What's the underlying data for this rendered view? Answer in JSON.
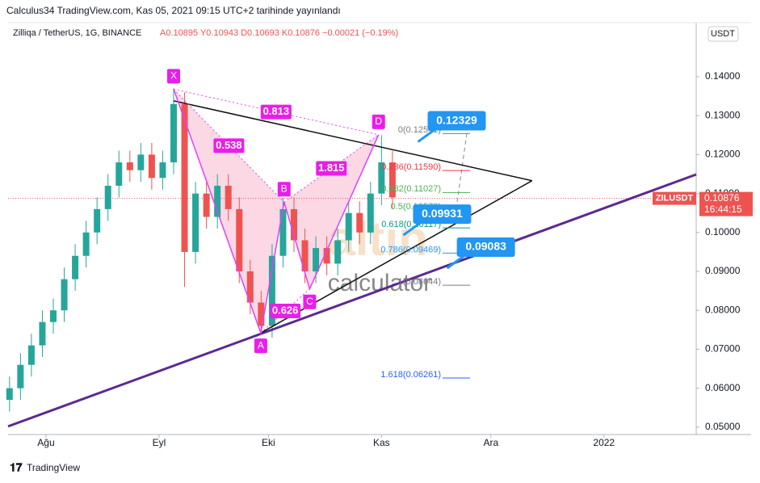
{
  "header": {
    "published": "Calculus34 TradingView.com, Kas 05, 2021 09:15 UTC+2 tarihinde yayınlandı",
    "footer": "TradingView",
    "currency_button": "USDT",
    "watermark": [
      "altın",
      "calculator"
    ]
  },
  "chart_data": {
    "type": "candlestick",
    "title": "Zilliqa / TetherUS, 1G, BINANCE",
    "ohlc_text": "A0.10895 Y0.10943 D0.10693 K0.10876 −0.00021 (−0.19%)",
    "up_color": "#26a69a",
    "down_color": "#ef5350",
    "x": [
      -10,
      -7,
      -4,
      -1,
      2,
      5,
      8,
      11,
      14,
      17,
      20,
      23,
      26,
      29,
      32,
      35,
      38,
      41,
      44,
      47,
      50,
      53,
      56,
      59,
      62,
      65,
      68,
      71,
      74,
      77,
      80,
      83,
      86,
      89,
      92,
      95
    ],
    "open": [
      0.057,
      0.06,
      0.066,
      0.071,
      0.077,
      0.08,
      0.088,
      0.094,
      0.1,
      0.106,
      0.112,
      0.118,
      0.116,
      0.12,
      0.114,
      0.118,
      0.133,
      0.095,
      0.11,
      0.104,
      0.112,
      0.106,
      0.09,
      0.082,
      0.076,
      0.094,
      0.106,
      0.098,
      0.09,
      0.096,
      0.092,
      0.098,
      0.105,
      0.1,
      0.11,
      0.118
    ],
    "high": [
      0.063,
      0.069,
      0.074,
      0.08,
      0.083,
      0.091,
      0.097,
      0.103,
      0.109,
      0.115,
      0.121,
      0.121,
      0.123,
      0.123,
      0.121,
      0.137,
      0.136,
      0.113,
      0.113,
      0.115,
      0.115,
      0.109,
      0.093,
      0.085,
      0.097,
      0.109,
      0.109,
      0.101,
      0.099,
      0.099,
      0.101,
      0.108,
      0.108,
      0.113,
      0.125,
      0.121
    ],
    "low": [
      0.054,
      0.057,
      0.063,
      0.068,
      0.074,
      0.077,
      0.085,
      0.091,
      0.097,
      0.103,
      0.109,
      0.113,
      0.113,
      0.111,
      0.111,
      0.115,
      0.086,
      0.092,
      0.101,
      0.101,
      0.103,
      0.087,
      0.079,
      0.074,
      0.073,
      0.091,
      0.095,
      0.087,
      0.087,
      0.089,
      0.089,
      0.095,
      0.097,
      0.097,
      0.107,
      0.106
    ],
    "close": [
      0.06,
      0.066,
      0.071,
      0.077,
      0.08,
      0.088,
      0.094,
      0.1,
      0.106,
      0.112,
      0.118,
      0.116,
      0.12,
      0.114,
      0.118,
      0.133,
      0.095,
      0.11,
      0.104,
      0.112,
      0.106,
      0.09,
      0.082,
      0.076,
      0.094,
      0.106,
      0.098,
      0.09,
      0.096,
      0.092,
      0.098,
      0.105,
      0.1,
      0.11,
      0.118,
      0.109
    ],
    "xlim": [
      -10.4,
      178.3
    ],
    "ylim": [
      0.0481,
      0.1539
    ],
    "xticks": [
      {
        "value": 0,
        "label": "Ağu"
      },
      {
        "value": 31,
        "label": "Eyl"
      },
      {
        "value": 61,
        "label": "Eki"
      },
      {
        "value": 92,
        "label": "Kas"
      },
      {
        "value": 122,
        "label": "Ara"
      },
      {
        "value": 153,
        "label": "2022"
      }
    ],
    "yticks": [
      {
        "value": 0.05,
        "label": "0.05000"
      },
      {
        "value": 0.06,
        "label": "0.06000"
      },
      {
        "value": 0.07,
        "label": "0.07000"
      },
      {
        "value": 0.08,
        "label": "0.08000"
      },
      {
        "value": 0.09,
        "label": "0.09000"
      },
      {
        "value": 0.1,
        "label": "0.10000"
      },
      {
        "value": 0.11,
        "label": "0.11000"
      },
      {
        "value": 0.12,
        "label": "0.12000"
      },
      {
        "value": 0.13,
        "label": "0.13000"
      },
      {
        "value": 0.14,
        "label": "0.14000"
      }
    ],
    "last_price": {
      "symbol": "ZILUSDT",
      "value": 0.10876,
      "label": "0.10876",
      "countdown": "16:44:15",
      "color": "#ef5350"
    },
    "pattern": {
      "color": "#e040fb",
      "points": [
        {
          "name": "X",
          "x": 35,
          "y": 0.1368
        },
        {
          "name": "A",
          "x": 58.9,
          "y": 0.0742
        },
        {
          "name": "B",
          "x": 65.3,
          "y": 0.1078
        },
        {
          "name": "C",
          "x": 72.3,
          "y": 0.0855
        },
        {
          "name": "D",
          "x": 91.2,
          "y": 0.1251
        }
      ],
      "ratios": [
        "0.538",
        "0.813",
        "1.815",
        "0.626"
      ]
    },
    "trend_lines": [
      {
        "color": "#5b2a8f",
        "points": [
          [
            -10.4,
            0.0502
          ],
          [
            178.3,
            0.1149
          ]
        ]
      },
      {
        "color": "#111111",
        "points": [
          [
            35,
            0.1338
          ],
          [
            133.3,
            0.1133
          ]
        ]
      },
      {
        "color": "#111111",
        "points": [
          [
            58.9,
            0.0742
          ],
          [
            133.3,
            0.1133
          ]
        ]
      }
    ],
    "fib_levels": [
      {
        "label": "0(0.12541)",
        "value": 0.12541,
        "color": "#787b86"
      },
      {
        "label": "0.236(0.11590)",
        "value": 0.1159,
        "color": "#f23645"
      },
      {
        "label": "0.382(0.11027)",
        "value": 0.11027,
        "color": "#4caf50"
      },
      {
        "label": "0.5(0.10573)",
        "value": 0.10573,
        "color": "#4caf50"
      },
      {
        "label": "0.618(0.10117)",
        "value": 0.10117,
        "color": "#089981"
      },
      {
        "label": "0.786(0.09469)",
        "value": 0.09469,
        "color": "#2196f3"
      },
      {
        "label": "1(0.08644)",
        "value": 0.08644,
        "color": "#787b86"
      },
      {
        "label": "1.618(0.06261)",
        "value": 0.06261,
        "color": "#2962ff"
      }
    ],
    "callouts": [
      {
        "x": 102,
        "value": 0.12329,
        "label": "0.12329"
      },
      {
        "x": 98,
        "value": 0.09931,
        "label": "0.09931"
      },
      {
        "x": 110,
        "value": 0.09083,
        "label": "0.09083"
      }
    ]
  }
}
